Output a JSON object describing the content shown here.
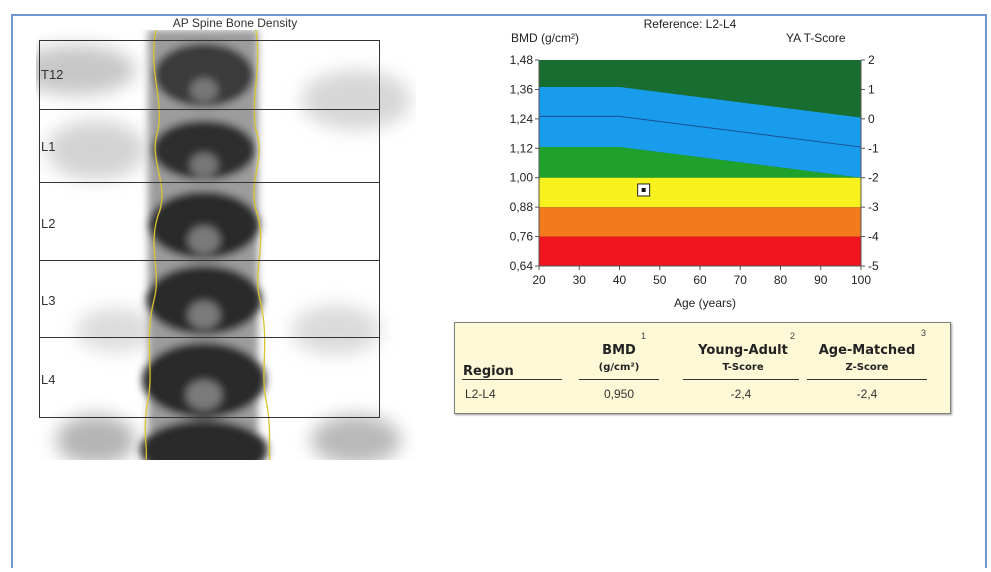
{
  "spine": {
    "title": "AP Spine Bone Density",
    "vertebrae": [
      "T12",
      "L1",
      "L2",
      "L3",
      "L4"
    ]
  },
  "chart": {
    "title": "Reference: L2-L4",
    "y_label": "BMD (g/cm²)",
    "y2_label": "YA T-Score",
    "x_label": "Age (years)"
  },
  "chart_data": {
    "type": "area",
    "title": "Reference: L2-L4",
    "xlabel": "Age (years)",
    "ylabel": "BMD (g/cm²)",
    "y2label": "YA T-Score",
    "xlim": [
      20,
      100
    ],
    "ylim": [
      0.64,
      1.48
    ],
    "x_ticks": [
      "20",
      "30",
      "40",
      "50",
      "60",
      "70",
      "80",
      "90",
      "100"
    ],
    "y_ticks": [
      "0,64",
      "0,76",
      "0,88",
      "1,00",
      "1,12",
      "1,24",
      "1,36",
      "1,48"
    ],
    "y2_ticks": [
      "-5",
      "-4",
      "-3",
      "-2",
      "-1",
      "0",
      "1",
      "2"
    ],
    "grid": false,
    "bands": [
      {
        "name": "red",
        "color": "#f0141e",
        "lower": 0.64,
        "upper": 0.76
      },
      {
        "name": "orange",
        "color": "#f47a1e",
        "lower": 0.76,
        "upper": 0.88
      },
      {
        "name": "yellow",
        "color": "#f7f11e"
      },
      {
        "name": "green",
        "color": "#1fa12c"
      },
      {
        "name": "blue",
        "color": "#1a9cec"
      },
      {
        "name": "dark-green",
        "color": "#176e30"
      }
    ],
    "reference_curves": {
      "x": [
        20,
        40,
        100
      ],
      "t_minus2": [
        1.0,
        1.0,
        1.0
      ],
      "t_minus1": [
        1.125,
        1.125,
        1.0
      ],
      "mean": [
        1.25,
        1.25,
        1.125
      ],
      "t_plus1": [
        1.37,
        1.37,
        1.245
      ]
    },
    "patient_point": {
      "x": 46,
      "y": 0.95
    }
  },
  "results": {
    "headers": {
      "region": "Region",
      "bmd": "BMD",
      "bmd_unit": "(g/cm²)",
      "bmd_note": "1",
      "ya": "Young-Adult",
      "ya_sub": "T-Score",
      "ya_note": "2",
      "am": "Age-Matched",
      "am_sub": "Z-Score",
      "am_note": "3"
    },
    "rows": [
      {
        "region": "L2-L4",
        "bmd": "0,950",
        "ya": "-2,4",
        "am": "-2,4"
      }
    ]
  }
}
